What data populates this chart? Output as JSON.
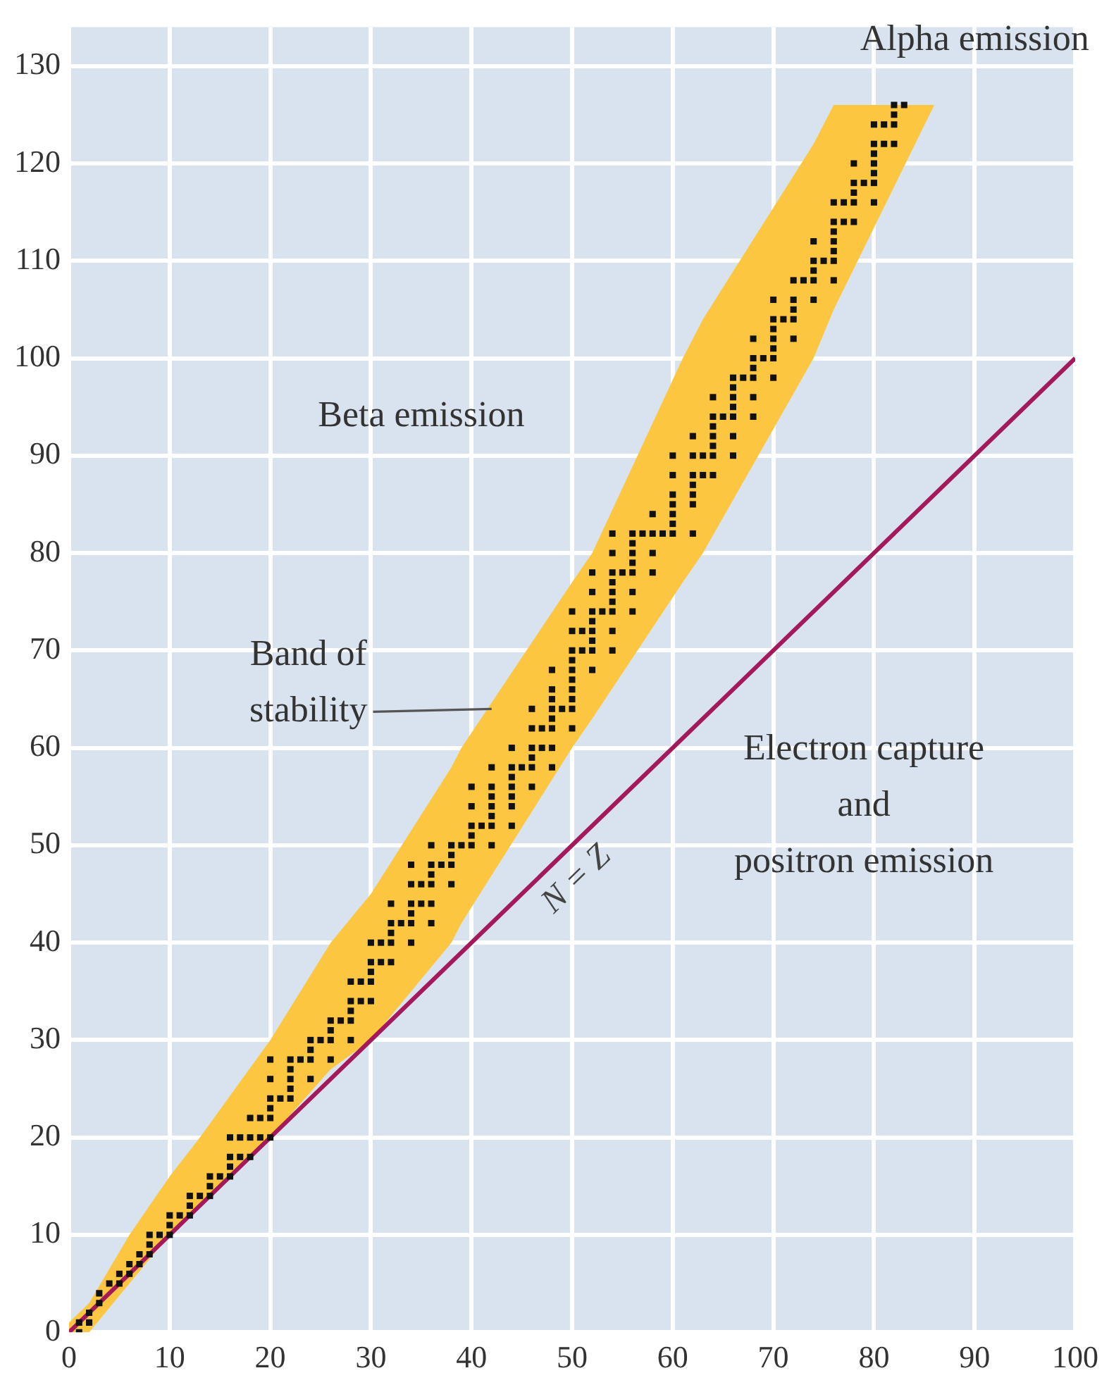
{
  "chart_data": {
    "type": "scatter",
    "xlim": [
      0,
      100
    ],
    "xticks": [
      0,
      10,
      20,
      30,
      40,
      50,
      60,
      70,
      80,
      90,
      100
    ],
    "ylim": [
      0,
      134
    ],
    "yticks": [
      0,
      10,
      20,
      30,
      40,
      50,
      60,
      70,
      80,
      90,
      100,
      110,
      120,
      130
    ],
    "grid": true,
    "legend": false,
    "series": [
      {
        "type": "area",
        "color": "#fdc640",
        "x": [
          0,
          2,
          6,
          10,
          13,
          20,
          26,
          30,
          38,
          39,
          50,
          52,
          61,
          63,
          74,
          76,
          86
        ],
        "values": [
          null,
          null,
          null,
          null,
          null,
          null,
          null,
          null,
          null,
          null,
          null,
          null,
          null,
          null,
          null,
          null,
          null
        ],
        "upper": [
          1,
          3,
          10,
          16,
          20,
          30,
          40,
          45,
          58,
          60,
          77,
          80,
          100,
          104,
          122,
          126,
          126
        ],
        "lower": [
          0,
          0,
          5,
          10,
          13,
          20,
          27,
          30,
          40,
          42,
          60,
          63,
          77,
          80,
          100,
          105,
          126
        ]
      },
      {
        "type": "line",
        "name": "N = Z",
        "color": "#a3195b",
        "x": [
          0,
          100
        ],
        "values": [
          0,
          100
        ]
      },
      {
        "marker": "square",
        "color": "#111111",
        "x": [
          1,
          1,
          2,
          2,
          3,
          3,
          4,
          5,
          5,
          6,
          6,
          7,
          7,
          8,
          8,
          8,
          9,
          10,
          10,
          10,
          11,
          12,
          12,
          12,
          13,
          14,
          14,
          14,
          15,
          16,
          16,
          16,
          16,
          17,
          17,
          18,
          18,
          18,
          19,
          19,
          20,
          20,
          20,
          20,
          20,
          20,
          21,
          22,
          22,
          22,
          22,
          22,
          23,
          24,
          24,
          24,
          24,
          25,
          26,
          26,
          26,
          26,
          27,
          28,
          28,
          28,
          28,
          28,
          29,
          29,
          30,
          30,
          30,
          30,
          30,
          31,
          31,
          32,
          32,
          32,
          32,
          32,
          33,
          34,
          34,
          34,
          34,
          34,
          34,
          35,
          35,
          36,
          36,
          36,
          36,
          36,
          36,
          37,
          38,
          38,
          38,
          38,
          39,
          40,
          40,
          40,
          40,
          40,
          41,
          42,
          42,
          42,
          42,
          42,
          42,
          42,
          44,
          44,
          44,
          44,
          44,
          44,
          44,
          45,
          46,
          46,
          46,
          46,
          46,
          46,
          47,
          47,
          48,
          48,
          48,
          48,
          48,
          48,
          48,
          48,
          49,
          50,
          50,
          50,
          50,
          50,
          50,
          50,
          50,
          50,
          50,
          51,
          51,
          52,
          52,
          52,
          52,
          52,
          52,
          52,
          52,
          53,
          54,
          54,
          54,
          54,
          54,
          54,
          54,
          54,
          54,
          55,
          56,
          56,
          56,
          56,
          56,
          56,
          56,
          57,
          58,
          58,
          58,
          58,
          59,
          60,
          60,
          60,
          60,
          60,
          60,
          60,
          62,
          62,
          62,
          62,
          62,
          62,
          62,
          63,
          63,
          64,
          64,
          64,
          64,
          64,
          64,
          64,
          65,
          66,
          66,
          66,
          66,
          66,
          66,
          66,
          67,
          68,
          68,
          68,
          68,
          68,
          68,
          69,
          70,
          70,
          70,
          70,
          70,
          70,
          70,
          71,
          72,
          72,
          72,
          72,
          72,
          73,
          74,
          74,
          74,
          74,
          74,
          75,
          76,
          76,
          76,
          76,
          76,
          76,
          76,
          77,
          77,
          78,
          78,
          78,
          78,
          78,
          79,
          80,
          80,
          80,
          80,
          80,
          80,
          80,
          81,
          81,
          82,
          82,
          82,
          82,
          83
        ],
        "values": [
          0,
          1,
          1,
          2,
          3,
          4,
          5,
          5,
          6,
          6,
          7,
          7,
          8,
          8,
          9,
          10,
          10,
          10,
          11,
          12,
          12,
          12,
          13,
          14,
          14,
          14,
          15,
          16,
          16,
          16,
          17,
          18,
          20,
          18,
          20,
          18,
          20,
          22,
          20,
          22,
          20,
          22,
          23,
          24,
          26,
          28,
          24,
          24,
          25,
          26,
          27,
          28,
          28,
          26,
          28,
          29,
          30,
          30,
          28,
          30,
          31,
          32,
          32,
          30,
          32,
          33,
          34,
          36,
          34,
          36,
          34,
          36,
          37,
          38,
          40,
          38,
          40,
          38,
          40,
          41,
          42,
          44,
          42,
          40,
          42,
          43,
          44,
          46,
          48,
          44,
          46,
          42,
          44,
          46,
          47,
          48,
          50,
          48,
          46,
          48,
          49,
          50,
          50,
          50,
          51,
          52,
          54,
          56,
          52,
          50,
          52,
          53,
          54,
          55,
          56,
          58,
          52,
          54,
          55,
          56,
          57,
          58,
          60,
          58,
          56,
          58,
          59,
          60,
          62,
          64,
          60,
          62,
          58,
          60,
          62,
          63,
          64,
          65,
          66,
          68,
          64,
          62,
          64,
          65,
          66,
          67,
          68,
          69,
          70,
          72,
          74,
          70,
          72,
          68,
          70,
          71,
          72,
          73,
          74,
          76,
          78,
          74,
          70,
          72,
          74,
          75,
          76,
          77,
          78,
          80,
          82,
          78,
          74,
          76,
          78,
          79,
          80,
          81,
          82,
          82,
          78,
          80,
          82,
          84,
          82,
          82,
          83,
          84,
          85,
          86,
          88,
          90,
          82,
          85,
          86,
          87,
          88,
          90,
          92,
          88,
          90,
          88,
          90,
          91,
          92,
          93,
          94,
          96,
          94,
          90,
          92,
          94,
          95,
          96,
          97,
          98,
          98,
          94,
          96,
          98,
          99,
          100,
          102,
          100,
          98,
          100,
          101,
          102,
          103,
          104,
          106,
          104,
          102,
          104,
          105,
          106,
          108,
          108,
          106,
          108,
          109,
          110,
          112,
          110,
          108,
          110,
          111,
          112,
          113,
          114,
          116,
          114,
          116,
          114,
          116,
          117,
          118,
          120,
          118,
          116,
          118,
          119,
          120,
          121,
          122,
          124,
          122,
          124,
          122,
          124,
          125,
          126,
          126
        ]
      }
    ],
    "annotations": [
      "Alpha emission",
      "Beta emission",
      {
        "text": "Band of stability",
        "x": 42,
        "y": 64
      },
      "Electron capture\nand\npositron emission"
    ]
  }
}
